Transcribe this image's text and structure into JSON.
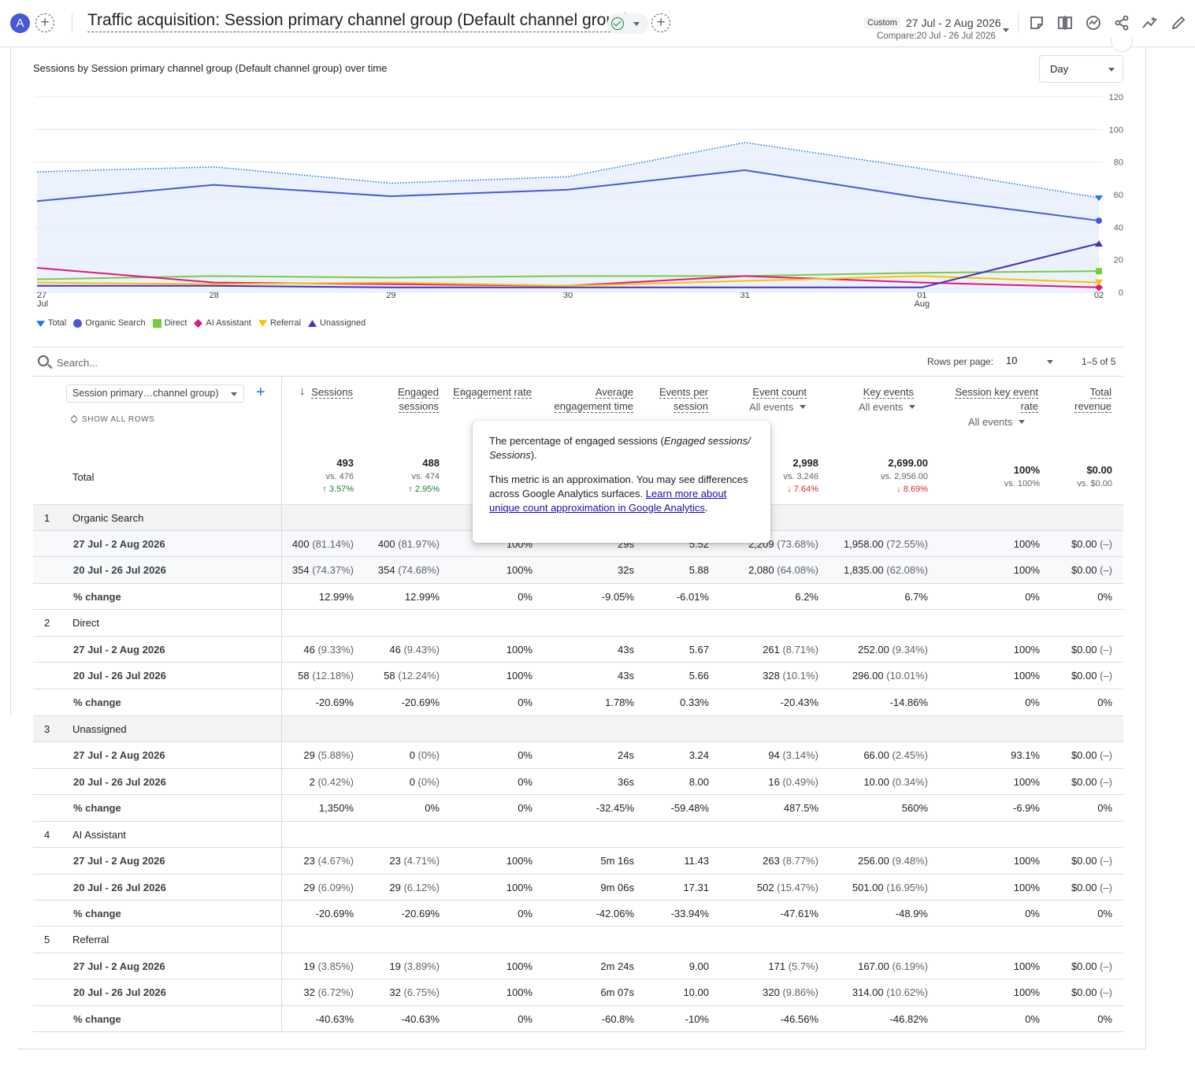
{
  "header": {
    "avatar_letter": "A",
    "title": "Traffic acquisition: Session primary channel group (Default channel group)",
    "date_chip": "Custom",
    "date_range": "27 Jul - 2 Aug 2026",
    "compare": "Compare:20 Jul - 26 Jul 2026",
    "icons": [
      "add-comparison-icon",
      "check-circle-icon",
      "annotate-icon",
      "compare-columns-icon",
      "insights-icon",
      "share-icon",
      "trend-icon",
      "edit-icon"
    ]
  },
  "chart": {
    "title": "Sessions by Session primary channel group (Default channel group) over time",
    "granularity": "Day"
  },
  "chart_data": {
    "type": "line",
    "x": [
      "27 Jul",
      "28",
      "29",
      "30",
      "31",
      "01 Aug",
      "02"
    ],
    "x_ticks": [
      {
        "top": "27",
        "bottom": "Jul"
      },
      {
        "top": "28",
        "bottom": ""
      },
      {
        "top": "29",
        "bottom": ""
      },
      {
        "top": "30",
        "bottom": ""
      },
      {
        "top": "31",
        "bottom": ""
      },
      {
        "top": "01",
        "bottom": "Aug"
      },
      {
        "top": "02",
        "bottom": ""
      }
    ],
    "y_ticks": [
      "120",
      "100",
      "80",
      "60",
      "40",
      "20",
      "0"
    ],
    "ylim": [
      0,
      120
    ],
    "legend_position": "bottom-left",
    "series": [
      {
        "name": "Total",
        "color": "#1a73e8",
        "values": [
          74,
          77,
          67,
          71,
          92,
          76,
          58
        ]
      },
      {
        "name": "Organic Search",
        "color": "#4759d6",
        "values": [
          56,
          66,
          59,
          63,
          75,
          58,
          44
        ]
      },
      {
        "name": "Direct",
        "color": "#7cca40",
        "values": [
          8,
          10,
          9,
          10,
          10,
          12,
          13
        ]
      },
      {
        "name": "AI Assistant",
        "color": "#e0187e",
        "values": [
          15,
          6,
          5,
          4,
          10,
          6,
          3
        ]
      },
      {
        "name": "Referral",
        "color": "#f9c200",
        "values": [
          6,
          5,
          6,
          4,
          7,
          10,
          6
        ]
      },
      {
        "name": "Unassigned",
        "color": "#4a2fb5",
        "values": [
          4,
          4,
          3,
          3,
          3,
          3,
          30
        ]
      }
    ]
  },
  "table": {
    "search_placeholder": "Search...",
    "rows_per_page_label": "Rows per page:",
    "rows_per_page": "10",
    "pagination": "1–5 of 5",
    "dimension": "Session primary…channel group)",
    "show_all_rows": "SHOW ALL ROWS",
    "columns": [
      {
        "label": "Sessions",
        "sub": ""
      },
      {
        "label": "Engaged sessions",
        "sub": ""
      },
      {
        "label": "Engagement rate",
        "sub": ""
      },
      {
        "label": "Average engagement time per session",
        "sub": ""
      },
      {
        "label": "Events per session",
        "sub": ""
      },
      {
        "label": "Event count",
        "sub": "All events"
      },
      {
        "label": "Key events",
        "sub": "All events"
      },
      {
        "label": "Session key event rate",
        "sub": "All events"
      },
      {
        "label": "Total revenue",
        "sub": ""
      }
    ],
    "total_label": "Total",
    "totals": [
      {
        "value": "493",
        "vs": "vs. 476",
        "change": "↑ 3.57%",
        "dir": "up"
      },
      {
        "value": "488",
        "vs": "vs. 474",
        "change": "↑ 2.95%",
        "dir": "up"
      },
      {
        "value": "",
        "vs": "",
        "change": "",
        "dir": ""
      },
      {
        "value": "",
        "vs": "",
        "change": "",
        "dir": ""
      },
      {
        "value": "",
        "vs": "",
        "change": "",
        "dir": ""
      },
      {
        "value": "2,998",
        "vs": "vs. 3,246",
        "change": "↓ 7.64%",
        "dir": "down"
      },
      {
        "value": "2,699.00",
        "vs": "vs. 2,956.00",
        "change": "↓ 8.69%",
        "dir": "down"
      },
      {
        "value": "100%",
        "vs": "vs. 100%",
        "change": "",
        "dir": ""
      },
      {
        "value": "$0.00",
        "vs": "vs. $0.00",
        "change": "",
        "dir": ""
      }
    ],
    "groups": [
      {
        "index": "1",
        "name": "Organic Search",
        "rows": [
          {
            "label": "27 Jul - 2 Aug 2026",
            "cells": [
              [
                "400",
                " (81.14%)"
              ],
              [
                "400",
                " (81.97%)"
              ],
              [
                "100%",
                ""
              ],
              [
                "29s",
                ""
              ],
              [
                "5.52",
                ""
              ],
              [
                "2,209",
                " (73.68%)"
              ],
              [
                "1,958.00",
                " (72.55%)"
              ],
              [
                "100%",
                ""
              ],
              [
                "$0.00",
                " (–)"
              ]
            ]
          },
          {
            "label": "20 Jul - 26 Jul 2026",
            "cells": [
              [
                "354",
                " (74.37%)"
              ],
              [
                "354",
                " (74.68%)"
              ],
              [
                "100%",
                ""
              ],
              [
                "32s",
                ""
              ],
              [
                "5.88",
                ""
              ],
              [
                "2,080",
                " (64.08%)"
              ],
              [
                "1,835.00",
                " (62.08%)"
              ],
              [
                "100%",
                ""
              ],
              [
                "$0.00",
                " (–)"
              ]
            ]
          },
          {
            "label": "% change",
            "cells": [
              [
                "12.99%",
                ""
              ],
              [
                "12.99%",
                ""
              ],
              [
                "0%",
                ""
              ],
              [
                "-9.05%",
                ""
              ],
              [
                "-6.01%",
                ""
              ],
              [
                "6.2%",
                ""
              ],
              [
                "6.7%",
                ""
              ],
              [
                "0%",
                ""
              ],
              [
                "0%",
                ""
              ]
            ]
          }
        ]
      },
      {
        "index": "2",
        "name": "Direct",
        "rows": [
          {
            "label": "27 Jul - 2 Aug 2026",
            "cells": [
              [
                "46",
                " (9.33%)"
              ],
              [
                "46",
                " (9.43%)"
              ],
              [
                "100%",
                ""
              ],
              [
                "43s",
                ""
              ],
              [
                "5.67",
                ""
              ],
              [
                "261",
                " (8.71%)"
              ],
              [
                "252.00",
                " (9.34%)"
              ],
              [
                "100%",
                ""
              ],
              [
                "$0.00",
                " (–)"
              ]
            ]
          },
          {
            "label": "20 Jul - 26 Jul 2026",
            "cells": [
              [
                "58",
                " (12.18%)"
              ],
              [
                "58",
                " (12.24%)"
              ],
              [
                "100%",
                ""
              ],
              [
                "43s",
                ""
              ],
              [
                "5.66",
                ""
              ],
              [
                "328",
                " (10.1%)"
              ],
              [
                "296.00",
                " (10.01%)"
              ],
              [
                "100%",
                ""
              ],
              [
                "$0.00",
                " (–)"
              ]
            ]
          },
          {
            "label": "% change",
            "cells": [
              [
                "-20.69%",
                ""
              ],
              [
                "-20.69%",
                ""
              ],
              [
                "0%",
                ""
              ],
              [
                "1.78%",
                ""
              ],
              [
                "0.33%",
                ""
              ],
              [
                "-20.43%",
                ""
              ],
              [
                "-14.86%",
                ""
              ],
              [
                "0%",
                ""
              ],
              [
                "0%",
                ""
              ]
            ]
          }
        ]
      },
      {
        "index": "3",
        "name": "Unassigned",
        "rows": [
          {
            "label": "27 Jul - 2 Aug 2026",
            "cells": [
              [
                "29",
                " (5.88%)"
              ],
              [
                "0",
                " (0%)"
              ],
              [
                "0%",
                ""
              ],
              [
                "24s",
                ""
              ],
              [
                "3.24",
                ""
              ],
              [
                "94",
                " (3.14%)"
              ],
              [
                "66.00",
                " (2.45%)"
              ],
              [
                "93.1%",
                ""
              ],
              [
                "$0.00",
                " (–)"
              ]
            ]
          },
          {
            "label": "20 Jul - 26 Jul 2026",
            "cells": [
              [
                "2",
                " (0.42%)"
              ],
              [
                "0",
                " (0%)"
              ],
              [
                "0%",
                ""
              ],
              [
                "36s",
                ""
              ],
              [
                "8.00",
                ""
              ],
              [
                "16",
                " (0.49%)"
              ],
              [
                "10.00",
                " (0.34%)"
              ],
              [
                "100%",
                ""
              ],
              [
                "$0.00",
                " (–)"
              ]
            ]
          },
          {
            "label": "% change",
            "cells": [
              [
                "1,350%",
                ""
              ],
              [
                "0%",
                ""
              ],
              [
                "0%",
                ""
              ],
              [
                "-32.45%",
                ""
              ],
              [
                "-59.48%",
                ""
              ],
              [
                "487.5%",
                ""
              ],
              [
                "560%",
                ""
              ],
              [
                "-6.9%",
                ""
              ],
              [
                "0%",
                ""
              ]
            ]
          }
        ]
      },
      {
        "index": "4",
        "name": "AI Assistant",
        "rows": [
          {
            "label": "27 Jul - 2 Aug 2026",
            "cells": [
              [
                "23",
                " (4.67%)"
              ],
              [
                "23",
                " (4.71%)"
              ],
              [
                "100%",
                ""
              ],
              [
                "5m 16s",
                ""
              ],
              [
                "11.43",
                ""
              ],
              [
                "263",
                " (8.77%)"
              ],
              [
                "256.00",
                " (9.48%)"
              ],
              [
                "100%",
                ""
              ],
              [
                "$0.00",
                " (–)"
              ]
            ]
          },
          {
            "label": "20 Jul - 26 Jul 2026",
            "cells": [
              [
                "29",
                " (6.09%)"
              ],
              [
                "29",
                " (6.12%)"
              ],
              [
                "100%",
                ""
              ],
              [
                "9m 06s",
                ""
              ],
              [
                "17.31",
                ""
              ],
              [
                "502",
                " (15.47%)"
              ],
              [
                "501.00",
                " (16.95%)"
              ],
              [
                "100%",
                ""
              ],
              [
                "$0.00",
                " (–)"
              ]
            ]
          },
          {
            "label": "% change",
            "cells": [
              [
                "-20.69%",
                ""
              ],
              [
                "-20.69%",
                ""
              ],
              [
                "0%",
                ""
              ],
              [
                "-42.06%",
                ""
              ],
              [
                "-33.94%",
                ""
              ],
              [
                "-47.61%",
                ""
              ],
              [
                "-48.9%",
                ""
              ],
              [
                "0%",
                ""
              ],
              [
                "0%",
                ""
              ]
            ]
          }
        ]
      },
      {
        "index": "5",
        "name": "Referral",
        "rows": [
          {
            "label": "27 Jul - 2 Aug 2026",
            "cells": [
              [
                "19",
                " (3.85%)"
              ],
              [
                "19",
                " (3.89%)"
              ],
              [
                "100%",
                ""
              ],
              [
                "2m 24s",
                ""
              ],
              [
                "9.00",
                ""
              ],
              [
                "171",
                " (5.7%)"
              ],
              [
                "167.00",
                " (6.19%)"
              ],
              [
                "100%",
                ""
              ],
              [
                "$0.00",
                " (–)"
              ]
            ]
          },
          {
            "label": "20 Jul - 26 Jul 2026",
            "cells": [
              [
                "32",
                " (6.72%)"
              ],
              [
                "32",
                " (6.75%)"
              ],
              [
                "100%",
                ""
              ],
              [
                "6m 07s",
                ""
              ],
              [
                "10.00",
                ""
              ],
              [
                "320",
                " (9.86%)"
              ],
              [
                "314.00",
                " (10.62%)"
              ],
              [
                "100%",
                ""
              ],
              [
                "$0.00",
                " (–)"
              ]
            ]
          },
          {
            "label": "% change",
            "cells": [
              [
                "-40.63%",
                ""
              ],
              [
                "-40.63%",
                ""
              ],
              [
                "0%",
                ""
              ],
              [
                "-60.8%",
                ""
              ],
              [
                "-10%",
                ""
              ],
              [
                "-46.56%",
                ""
              ],
              [
                "-46.82%",
                ""
              ],
              [
                "0%",
                ""
              ],
              [
                "0%",
                ""
              ]
            ]
          }
        ]
      }
    ]
  },
  "tooltip": {
    "line1_a": "The percentage of engaged sessions (",
    "line1_em": "Engaged sessions/ Sessions",
    "line1_b": ").",
    "line2": "This metric is an approximation. You may see differences across Google Analytics surfaces. ",
    "link": "Learn more about unique count approximation in Google Analytics",
    "line2_end": "."
  }
}
